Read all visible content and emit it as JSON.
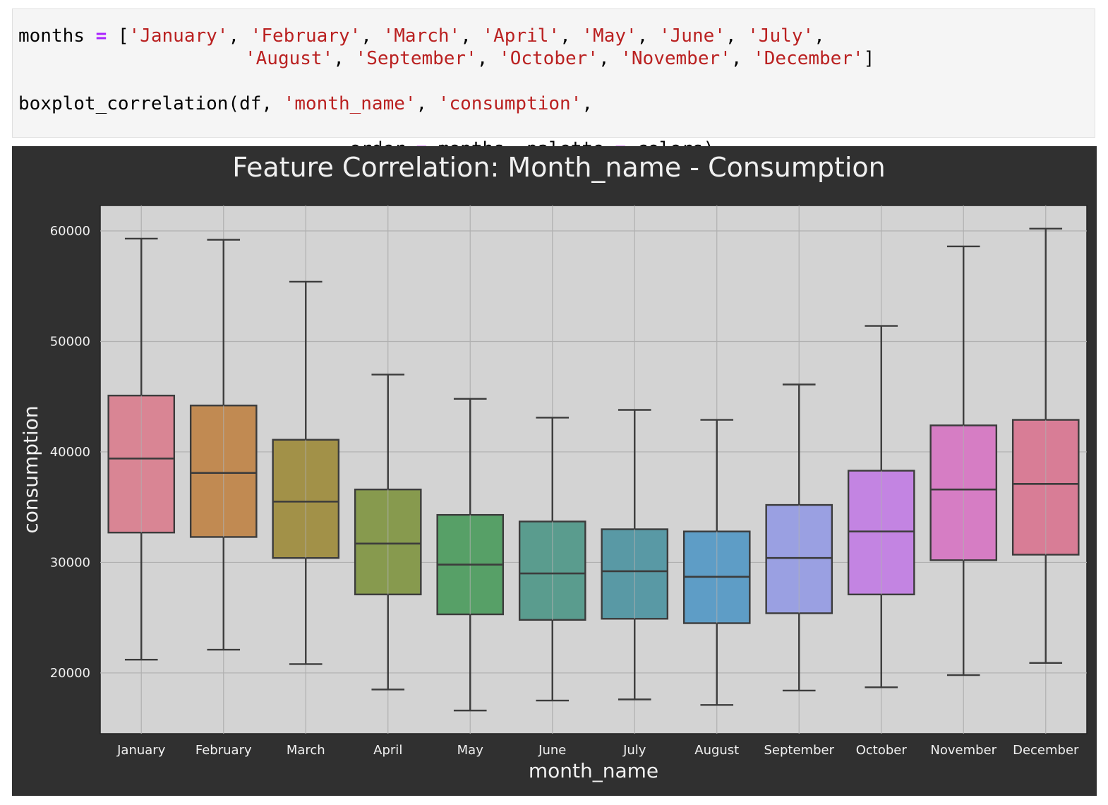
{
  "code": {
    "line1": [
      {
        "t": "months ",
        "c": "plain"
      },
      {
        "t": "=",
        "c": "op"
      },
      {
        "t": " [",
        "c": "plain"
      },
      {
        "t": "'January'",
        "c": "str"
      },
      {
        "t": ", ",
        "c": "plain"
      },
      {
        "t": "'February'",
        "c": "str"
      },
      {
        "t": ", ",
        "c": "plain"
      },
      {
        "t": "'March'",
        "c": "str"
      },
      {
        "t": ", ",
        "c": "plain"
      },
      {
        "t": "'April'",
        "c": "str"
      },
      {
        "t": ", ",
        "c": "plain"
      },
      {
        "t": "'May'",
        "c": "str"
      },
      {
        "t": ", ",
        "c": "plain"
      },
      {
        "t": "'June'",
        "c": "str"
      },
      {
        "t": ", ",
        "c": "plain"
      },
      {
        "t": "'July'",
        "c": "str"
      },
      {
        "t": ",",
        "c": "plain"
      }
    ],
    "line2": [
      {
        "t": "'August'",
        "c": "str"
      },
      {
        "t": ", ",
        "c": "plain"
      },
      {
        "t": "'September'",
        "c": "str"
      },
      {
        "t": ", ",
        "c": "plain"
      },
      {
        "t": "'October'",
        "c": "str"
      },
      {
        "t": ", ",
        "c": "plain"
      },
      {
        "t": "'November'",
        "c": "str"
      },
      {
        "t": ", ",
        "c": "plain"
      },
      {
        "t": "'December'",
        "c": "str"
      },
      {
        "t": "]",
        "c": "plain"
      }
    ],
    "line3": [
      {
        "t": "boxplot_correlation(df, ",
        "c": "plain"
      },
      {
        "t": "'month_name'",
        "c": "str"
      },
      {
        "t": ", ",
        "c": "plain"
      },
      {
        "t": "'consumption'",
        "c": "str"
      },
      {
        "t": ",",
        "c": "plain"
      }
    ],
    "line4": [
      {
        "t": "order ",
        "c": "plain"
      },
      {
        "t": "=",
        "c": "op"
      },
      {
        "t": " months, palette ",
        "c": "plain"
      },
      {
        "t": "=",
        "c": "op"
      },
      {
        "t": " colors)",
        "c": "plain"
      }
    ]
  },
  "chart_data": {
    "type": "box",
    "title": "Feature Correlation: Month_name - Consumption",
    "xlabel": "month_name",
    "ylabel": "consumption",
    "ylim": [
      14500,
      62300
    ],
    "yticks": [
      20000,
      30000,
      40000,
      50000,
      60000
    ],
    "grid": true,
    "categories": [
      "January",
      "February",
      "March",
      "April",
      "May",
      "June",
      "July",
      "August",
      "September",
      "October",
      "November",
      "December"
    ],
    "boxes": [
      {
        "whisker_low": 21200,
        "q1": 32700,
        "median": 39400,
        "q3": 45100,
        "whisker_high": 59300
      },
      {
        "whisker_low": 22100,
        "q1": 32300,
        "median": 38100,
        "q3": 44200,
        "whisker_high": 59200
      },
      {
        "whisker_low": 20800,
        "q1": 30400,
        "median": 35500,
        "q3": 41100,
        "whisker_high": 55400
      },
      {
        "whisker_low": 18500,
        "q1": 27100,
        "median": 31700,
        "q3": 36600,
        "whisker_high": 47000
      },
      {
        "whisker_low": 16600,
        "q1": 25300,
        "median": 29800,
        "q3": 34300,
        "whisker_high": 44800
      },
      {
        "whisker_low": 17500,
        "q1": 24800,
        "median": 29000,
        "q3": 33700,
        "whisker_high": 43100
      },
      {
        "whisker_low": 17600,
        "q1": 24900,
        "median": 29200,
        "q3": 33000,
        "whisker_high": 43800
      },
      {
        "whisker_low": 17100,
        "q1": 24500,
        "median": 28700,
        "q3": 32800,
        "whisker_high": 42900
      },
      {
        "whisker_low": 18400,
        "q1": 25400,
        "median": 30400,
        "q3": 35200,
        "whisker_high": 46100
      },
      {
        "whisker_low": 18700,
        "q1": 27100,
        "median": 32800,
        "q3": 38300,
        "whisker_high": 51400
      },
      {
        "whisker_low": 19800,
        "q1": 30200,
        "median": 36600,
        "q3": 42400,
        "whisker_high": 58600
      },
      {
        "whisker_low": 20900,
        "q1": 30700,
        "median": 37100,
        "q3": 42900,
        "whisker_high": 60200
      }
    ],
    "colors": [
      "#d98594",
      "#c18a52",
      "#a29148",
      "#879a4e",
      "#57a067",
      "#5a9c8e",
      "#5999a5",
      "#5e9dc6",
      "#9aa0e2",
      "#c384e2",
      "#d67dc4",
      "#d87d96"
    ]
  }
}
